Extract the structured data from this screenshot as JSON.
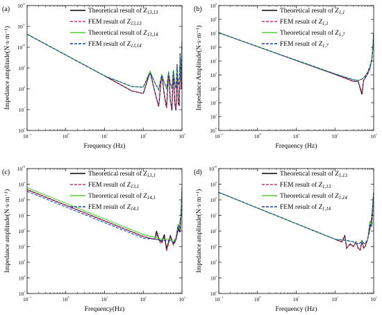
{
  "colors": {
    "theoretical_black": "#000000",
    "fem_magenta": "#c0307a",
    "theoretical_green": "#55cc33",
    "fem_blue": "#1f3bb3"
  },
  "chart_data": [
    {
      "panel_label": "(a)",
      "type": "line",
      "x_scale": "log",
      "y_scale": "log",
      "xlabel": "Frequency (Hz)",
      "ylabel": "Impedance amplitude(N·s·m⁻¹)",
      "xlim": [
        0.1,
        1000
      ],
      "ylim": [
        1000000.0,
        1000000000000.0
      ],
      "x_ticks": [
        "10⁻¹",
        "10⁰",
        "10¹",
        "10²",
        "10³"
      ],
      "y_ticks": [
        "10⁶",
        "10⁷",
        "10⁸",
        "10⁹",
        "10¹⁰",
        "10¹¹",
        "10¹²"
      ],
      "legend_position": "top-right",
      "grid": false,
      "series": [
        {
          "name": "Theoretical result of Z13,13",
          "style": "solid",
          "color": "#000000",
          "x": [
            0.1,
            1,
            10,
            50,
            100,
            150,
            200,
            250,
            300,
            350,
            400,
            450,
            500,
            550,
            600,
            650,
            700,
            750,
            800,
            850,
            900,
            950,
            1000
          ],
          "y": [
            42000000000.0,
            4200000000.0,
            420000000.0,
            80000000.0,
            60000000.0,
            650000000.0,
            70000000.0,
            14000000.0,
            500000000.0,
            50000000.0,
            12000000.0,
            700000000.0,
            30000000.0,
            9000000.0,
            800000000.0,
            20000000.0,
            9000000.0,
            1500000000.0,
            20000000.0,
            15000000.0,
            5000000000.0,
            100000000.0,
            20000000000.0
          ]
        },
        {
          "name": "FEM result of Z13,13",
          "style": "dashed",
          "color": "#c0307a",
          "x": [
            0.1,
            1,
            10,
            50,
            100,
            150,
            200,
            250,
            300,
            350,
            400,
            450,
            500,
            550,
            600,
            650,
            700,
            750,
            800,
            850,
            900,
            950,
            1000
          ],
          "y": [
            42000000000.0,
            4200000000.0,
            420000000.0,
            80000000.0,
            60000000.0,
            600000000.0,
            70000000.0,
            14000000.0,
            450000000.0,
            50000000.0,
            12000000.0,
            600000000.0,
            30000000.0,
            9000000.0,
            700000000.0,
            20000000.0,
            9000000.0,
            1200000000.0,
            20000000.0,
            15000000.0,
            4000000000.0,
            100000000.0,
            15000000000.0
          ]
        },
        {
          "name": "Theoretical result of Z13,14",
          "style": "solid",
          "color": "#55cc33",
          "x": [
            0.1,
            1,
            10,
            50,
            100,
            150,
            200,
            250,
            300,
            350,
            400,
            450,
            500,
            550,
            600,
            650,
            700,
            750,
            800,
            850,
            900,
            950,
            1000
          ],
          "y": [
            42000000000.0,
            4200000000.0,
            420000000.0,
            130000000.0,
            120000000.0,
            700000000.0,
            200000000.0,
            90000000.0,
            500000000.0,
            200000000.0,
            100000000.0,
            700000000.0,
            180000000.0,
            100000000.0,
            800000000.0,
            200000000.0,
            100000000.0,
            1300000000.0,
            200000000.0,
            150000000.0,
            4000000000.0,
            300000000.0,
            15000000000.0
          ]
        },
        {
          "name": "FEM result of Z13,14",
          "style": "dashed",
          "color": "#1f3bb3",
          "x": [
            0.1,
            1,
            10,
            50,
            100,
            150,
            200,
            250,
            300,
            350,
            400,
            450,
            500,
            550,
            600,
            650,
            700,
            750,
            800,
            850,
            900,
            950,
            1000
          ],
          "y": [
            42000000000.0,
            4200000000.0,
            420000000.0,
            130000000.0,
            120000000.0,
            600000000.0,
            200000000.0,
            90000000.0,
            450000000.0,
            200000000.0,
            100000000.0,
            600000000.0,
            180000000.0,
            100000000.0,
            700000000.0,
            200000000.0,
            100000000.0,
            1200000000.0,
            200000000.0,
            150000000.0,
            3500000000.0,
            300000000.0,
            12000000000.0
          ]
        }
      ]
    },
    {
      "panel_label": "(b)",
      "type": "line",
      "x_scale": "log",
      "y_scale": "log",
      "xlabel": "Frequency (Hz)",
      "ylabel": "Impedance Amplitude(N·s·m⁻¹)",
      "xlim": [
        0.1,
        1000
      ],
      "ylim": [
        1,
        1000000000.0
      ],
      "x_ticks": [
        "10⁻¹",
        "10⁰",
        "10¹",
        "10²",
        "10³"
      ],
      "y_ticks": [
        "10⁰",
        "10¹",
        "10²",
        "10³",
        "10⁴",
        "10⁵",
        "10⁶",
        "10⁷",
        "10⁸",
        "10⁹"
      ],
      "legend_position": "top-right",
      "grid": false,
      "series": [
        {
          "name": "Theoretical result of Z1,1",
          "style": "solid",
          "color": "#000000",
          "x": [
            0.1,
            1,
            10,
            100,
            300,
            400,
            450,
            500,
            550,
            600,
            700,
            800,
            900,
            950,
            1000
          ],
          "y": [
            11000000.0,
            1100000.0,
            110000.0,
            11000.0,
            3500.0,
            3300.0,
            1000.0,
            400.0,
            4000.0,
            6000.0,
            12000.0,
            30000.0,
            130000.0,
            800000.0,
            10000000.0
          ]
        },
        {
          "name": "FEM result of Z1,1",
          "style": "dashed",
          "color": "#c0307a",
          "x": [
            0.1,
            1,
            10,
            100,
            300,
            400,
            450,
            500,
            550,
            600,
            700,
            800,
            900,
            950,
            1000
          ],
          "y": [
            11000000.0,
            1100000.0,
            110000.0,
            11000.0,
            3500.0,
            3300.0,
            1200.0,
            600.0,
            4000.0,
            6000.0,
            12000.0,
            30000.0,
            130000.0,
            800000.0,
            10000000.0
          ]
        },
        {
          "name": "Theoretical result of Z1,7",
          "style": "solid",
          "color": "#55cc33",
          "x": [
            0.1,
            1,
            10,
            100,
            300,
            400,
            500,
            600,
            700,
            800,
            900,
            950,
            1000
          ],
          "y": [
            11000000.0,
            1100000.0,
            115000.0,
            12000.0,
            4500.0,
            4000.0,
            5000.0,
            8000.0,
            16000.0,
            40000.0,
            150000.0,
            900000.0,
            11000000.0
          ]
        },
        {
          "name": "FEM result of Z1,7",
          "style": "dashed",
          "color": "#1f3bb3",
          "x": [
            0.1,
            1,
            10,
            100,
            300,
            400,
            500,
            600,
            700,
            800,
            900,
            950,
            1000
          ],
          "y": [
            11000000.0,
            1100000.0,
            115000.0,
            12000.0,
            4500.0,
            4000.0,
            5000.0,
            8000.0,
            16000.0,
            40000.0,
            150000.0,
            900000.0,
            11000000.0
          ]
        }
      ]
    },
    {
      "panel_label": "(c)",
      "type": "line",
      "x_scale": "log",
      "y_scale": "log",
      "xlabel": "Frequency(Hz)",
      "ylabel": "Impedance amplitude(N·s·m⁻¹)",
      "xlim": [
        0.1,
        1000
      ],
      "ylim": [
        100,
        10000000000.0
      ],
      "x_ticks": [
        "10⁻¹",
        "10⁰",
        "10¹",
        "10²",
        "10³"
      ],
      "y_ticks": [
        "10²",
        "10³",
        "10⁴",
        "10⁵",
        "10⁶",
        "10⁷",
        "10⁸",
        "10⁹",
        "10¹⁰"
      ],
      "legend_position": "top-right",
      "grid": false,
      "series": [
        {
          "name": "Theoretical result of Z13,1",
          "style": "solid",
          "color": "#000000",
          "x": [
            0.1,
            1,
            10,
            100,
            150,
            200,
            220,
            260,
            300,
            350,
            400,
            450,
            500,
            600,
            700,
            800,
            900,
            1000
          ],
          "y": [
            450000000.0,
            45000000.0,
            4500000.0,
            450000.0,
            350000.0,
            300000.0,
            1000000.0,
            250000.0,
            200000.0,
            600000.0,
            70000.0,
            200000.0,
            500000.0,
            150000.0,
            300000.0,
            1500000.0,
            1000000.0,
            300000000.0
          ]
        },
        {
          "name": "FEM result of Z13,1",
          "style": "dashed",
          "color": "#c0307a",
          "x": [
            0.1,
            1,
            10,
            100,
            150,
            200,
            220,
            260,
            300,
            350,
            400,
            450,
            500,
            600,
            700,
            800,
            900,
            1000
          ],
          "y": [
            450000000.0,
            45000000.0,
            4500000.0,
            450000.0,
            350000.0,
            300000.0,
            600000.0,
            200000.0,
            150000.0,
            400000.0,
            50000.0,
            150000.0,
            400000.0,
            120000.0,
            250000.0,
            1000000.0,
            800000.0,
            200000000.0
          ]
        },
        {
          "name": "Theoretical result of Z14,1",
          "style": "solid",
          "color": "#55cc33",
          "x": [
            0.1,
            1,
            10,
            100,
            200,
            300,
            400,
            500,
            600,
            700,
            800,
            850,
            900,
            950,
            1000
          ],
          "y": [
            600000000.0,
            60000000.0,
            6000000.0,
            600000.0,
            400000.0,
            300000.0,
            300000.0,
            300000.0,
            200000.0,
            400000.0,
            3000000.0,
            1000000.0,
            6000000.0,
            10000000.0,
            800000000.0
          ]
        },
        {
          "name": "FEM result of Z14,1",
          "style": "dashed",
          "color": "#1f3bb3",
          "x": [
            0.1,
            1,
            10,
            100,
            200,
            300,
            400,
            500,
            600,
            700,
            800,
            850,
            900,
            950,
            1000
          ],
          "y": [
            350000000.0,
            35000000.0,
            3500000.0,
            350000.0,
            300000.0,
            250000.0,
            250000.0,
            250000.0,
            180000.0,
            300000.0,
            2500000.0,
            800000.0,
            5000000.0,
            8000000.0,
            600000000.0
          ]
        }
      ]
    },
    {
      "panel_label": "(d)",
      "type": "line",
      "x_scale": "log",
      "y_scale": "log",
      "xlabel": "Frequency (Hz)",
      "ylabel": "Impedance amplitude(N·s·m⁻¹)",
      "xlim": [
        0.1,
        1000
      ],
      "ylim": [
        100,
        10000000000.0
      ],
      "x_ticks": [
        "10⁻¹",
        "10⁰",
        "10¹",
        "10²",
        "10³"
      ],
      "y_ticks": [
        "10²",
        "10³",
        "10⁴",
        "10⁵",
        "10⁶",
        "10⁷",
        "10⁸",
        "10⁹",
        "10¹⁰"
      ],
      "legend_position": "top-right",
      "grid": false,
      "series": [
        {
          "name": "Theoretical result of Z1,13",
          "style": "solid",
          "color": "#000000",
          "x": [
            0.1,
            1,
            10,
            100,
            150,
            180,
            200,
            250,
            300,
            350,
            400,
            450,
            500,
            550,
            600,
            700,
            800,
            900,
            1000
          ],
          "y": [
            300000000.0,
            30000000.0,
            3000000.0,
            300000.0,
            200000.0,
            500000.0,
            80000.0,
            150000.0,
            100000.0,
            200000.0,
            80000.0,
            60000.0,
            250000.0,
            80000.0,
            100000.0,
            300000.0,
            1500000.0,
            8000000.0,
            300000000.0
          ]
        },
        {
          "name": "FEM result of Z1,13",
          "style": "dashed",
          "color": "#c0307a",
          "x": [
            0.1,
            1,
            10,
            100,
            150,
            180,
            200,
            250,
            300,
            350,
            400,
            450,
            500,
            550,
            600,
            700,
            800,
            900,
            1000
          ],
          "y": [
            300000000.0,
            30000000.0,
            3000000.0,
            300000.0,
            200000.0,
            400000.0,
            80000.0,
            140000.0,
            100000.0,
            200000.0,
            80000.0,
            60000.0,
            200000.0,
            80000.0,
            100000.0,
            300000.0,
            1200000.0,
            7000000.0,
            250000000.0
          ]
        },
        {
          "name": "Theoretical result of Z1,14",
          "style": "solid",
          "color": "#55cc33",
          "x": [
            0.1,
            1,
            10,
            100,
            200,
            300,
            400,
            500,
            600,
            700,
            800,
            900,
            1000
          ],
          "y": [
            300000000.0,
            30000000.0,
            3000000.0,
            300000.0,
            250000.0,
            200000.0,
            150000.0,
            200000.0,
            150000.0,
            300000.0,
            4000000.0,
            2000000.0,
            300000000.0
          ]
        },
        {
          "name": "FEM result of Z1,14",
          "style": "dashed",
          "color": "#1f3bb3",
          "x": [
            0.1,
            1,
            10,
            100,
            200,
            300,
            400,
            500,
            600,
            700,
            800,
            900,
            1000
          ],
          "y": [
            300000000.0,
            30000000.0,
            3000000.0,
            300000.0,
            250000.0,
            200000.0,
            150000.0,
            200000.0,
            150000.0,
            300000.0,
            3000000.0,
            2000000.0,
            300000000.0
          ]
        }
      ]
    }
  ]
}
